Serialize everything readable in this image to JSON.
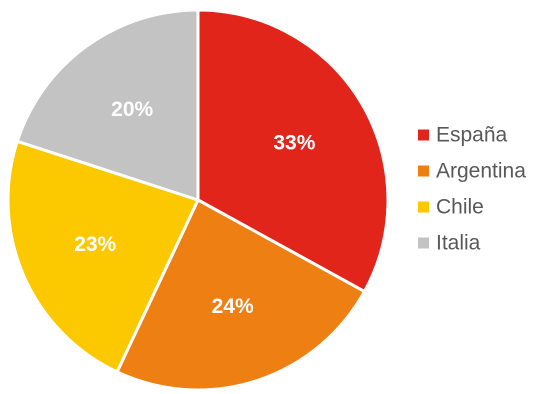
{
  "chart_data": {
    "type": "pie",
    "categories": [
      "España",
      "Argentina",
      "Chile",
      "Italia"
    ],
    "values": [
      33,
      24,
      23,
      20
    ],
    "labels": [
      "33%",
      "24%",
      "23%",
      "20%"
    ],
    "colors": [
      "#E1251B",
      "#EE7F12",
      "#FCC800",
      "#C3C3C3"
    ],
    "start_angle_deg": 0,
    "direction": "clockwise",
    "legend_position": "right",
    "title": ""
  }
}
